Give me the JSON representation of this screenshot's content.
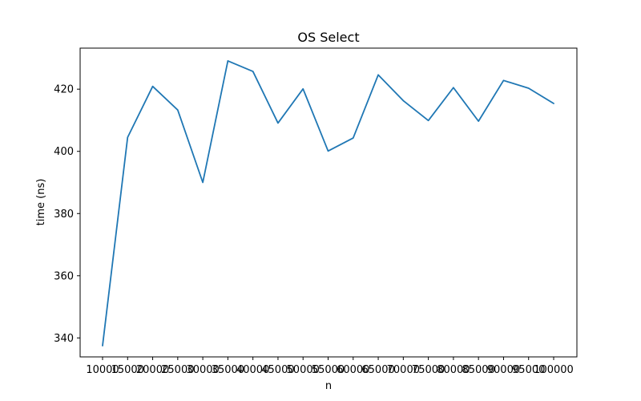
{
  "chart_data": {
    "type": "line",
    "title": "OS Select",
    "xlabel": "n",
    "ylabel": "time (ns)",
    "x": [
      10000,
      15000,
      20000,
      25000,
      30000,
      35000,
      40000,
      45000,
      50000,
      55000,
      60000,
      65000,
      70000,
      75000,
      80000,
      85000,
      90000,
      95000,
      100000
    ],
    "x_tick_labels": [
      "10000",
      "15000",
      "20000",
      "25000",
      "30000",
      "35000",
      "40000",
      "45000",
      "50000",
      "55000",
      "60000",
      "65000",
      "70000",
      "75000",
      "80000",
      "85000",
      "90000",
      "95000",
      "100000"
    ],
    "series": [
      {
        "values": [
          337.5,
          404.5,
          420.9,
          413.3,
          390.0,
          429.1,
          425.7,
          409.1,
          420.1,
          400.1,
          404.3,
          424.6,
          416.3,
          409.9,
          420.5,
          409.7,
          422.8,
          420.3,
          415.4
        ],
        "color": "#1f77b4"
      }
    ],
    "y_ticks": [
      340,
      360,
      380,
      400,
      420
    ],
    "ylim": [
      333.9,
      433.2
    ],
    "grid": false,
    "legend": "none"
  }
}
